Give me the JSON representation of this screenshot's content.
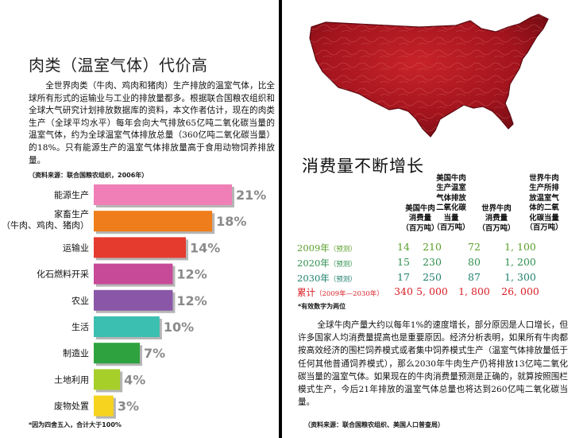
{
  "left": {
    "title": "肉类（温室气体）代价高",
    "intro": "全世界肉类（牛肉、鸡肉和猪肉）生产排放的温室气体，比全球所有形式的运输业与工业的排放量都多。根据联合国粮农组织和全球大气研究计划排放数据库的资料，本文作者估计，现在的肉类生产（全球平均水平）每年会向大气排放65亿吨二氧化碳当量的温室气体，约为全球温室气体排放总量（360亿吨二氧化碳当量）的18%。只有能源生产的温室气体排放量高于食用动物饲养排放量。",
    "source": "（资料来源：联合国粮农组织，2006年）",
    "note": "*因为四舍五入，合计大于100%"
  },
  "chart_data": {
    "type": "bar",
    "orientation": "horizontal",
    "categories": [
      "能源生产",
      "家畜生产\n（牛肉、鸡肉、猪肉）",
      "运输业",
      "化石燃料开采",
      "农业",
      "生活",
      "制造业",
      "土地利用",
      "废物处置"
    ],
    "values": [
      21,
      18,
      14,
      12,
      12,
      10,
      7,
      4,
      3
    ],
    "value_labels": [
      "21%",
      "18%",
      "14%",
      "12%",
      "12%",
      "10%",
      "7%",
      "4%",
      "3%"
    ],
    "colors": [
      "#ef7fb6",
      "#ef7d1b",
      "#e53b2e",
      "#c64a98",
      "#8a57a8",
      "#3bbfb1",
      "#2ea23e",
      "#a6cf29",
      "#f6d31f"
    ],
    "title": "",
    "xlabel": "",
    "ylabel": "",
    "xlim": [
      0,
      21
    ]
  },
  "right": {
    "map": {
      "name": "us-map-meat-texture"
    },
    "title": "消费量不断增长",
    "headers": [
      "美国牛肉\n消费量\n（百万吨）",
      "美国牛肉\n生产温室\n气体排放\n二氧化碳\n当量\n（百万吨）",
      "世界牛肉\n消费量\n（百万吨）",
      "世界牛肉\n生产所排\n放温室气\n体的二氧\n化碳当量\n（百万吨）"
    ],
    "rows": [
      {
        "year": "2009年",
        "tag": "（预测）",
        "values": [
          "14",
          "210",
          "72",
          "1, 100"
        ],
        "color": "#5a9f2a"
      },
      {
        "year": "2020年",
        "tag": "（预测）",
        "values": [
          "15",
          "230",
          "80",
          "1, 200"
        ],
        "color": "#2e8f4e"
      },
      {
        "year": "2030年",
        "tag": "（预测）",
        "values": [
          "17",
          "250",
          "87",
          "1, 300"
        ],
        "color": "#20806e"
      },
      {
        "year": "累计",
        "tag": "（2009年—2030年）",
        "values": [
          "340",
          "5, 000",
          "1, 800",
          "26, 000"
        ],
        "color": "#d91f26"
      }
    ],
    "note": "*有效数字为两位",
    "body": "全球牛肉产量大约以每年1%的速度增长，部分原因是人口增长，但许多国家人均消费量提高也是重要原因。经济分析表明，如果所有牛肉都按高效经济的围栏饲养模式或者集中饲养模式生产（温室气体排放量低于任何其他普通饲养模式），那么2030年牛肉生产仍将排放13亿吨二氧化碳当量的温室气体。如果现在的牛肉消费量预测是正确的，就算按照围栏模式生产，今后21年排放的温室气体总量也将达到260亿吨二氧化碳当量。",
    "source": "（资料来源：联合国粮农组织、美国人口普查局）"
  }
}
